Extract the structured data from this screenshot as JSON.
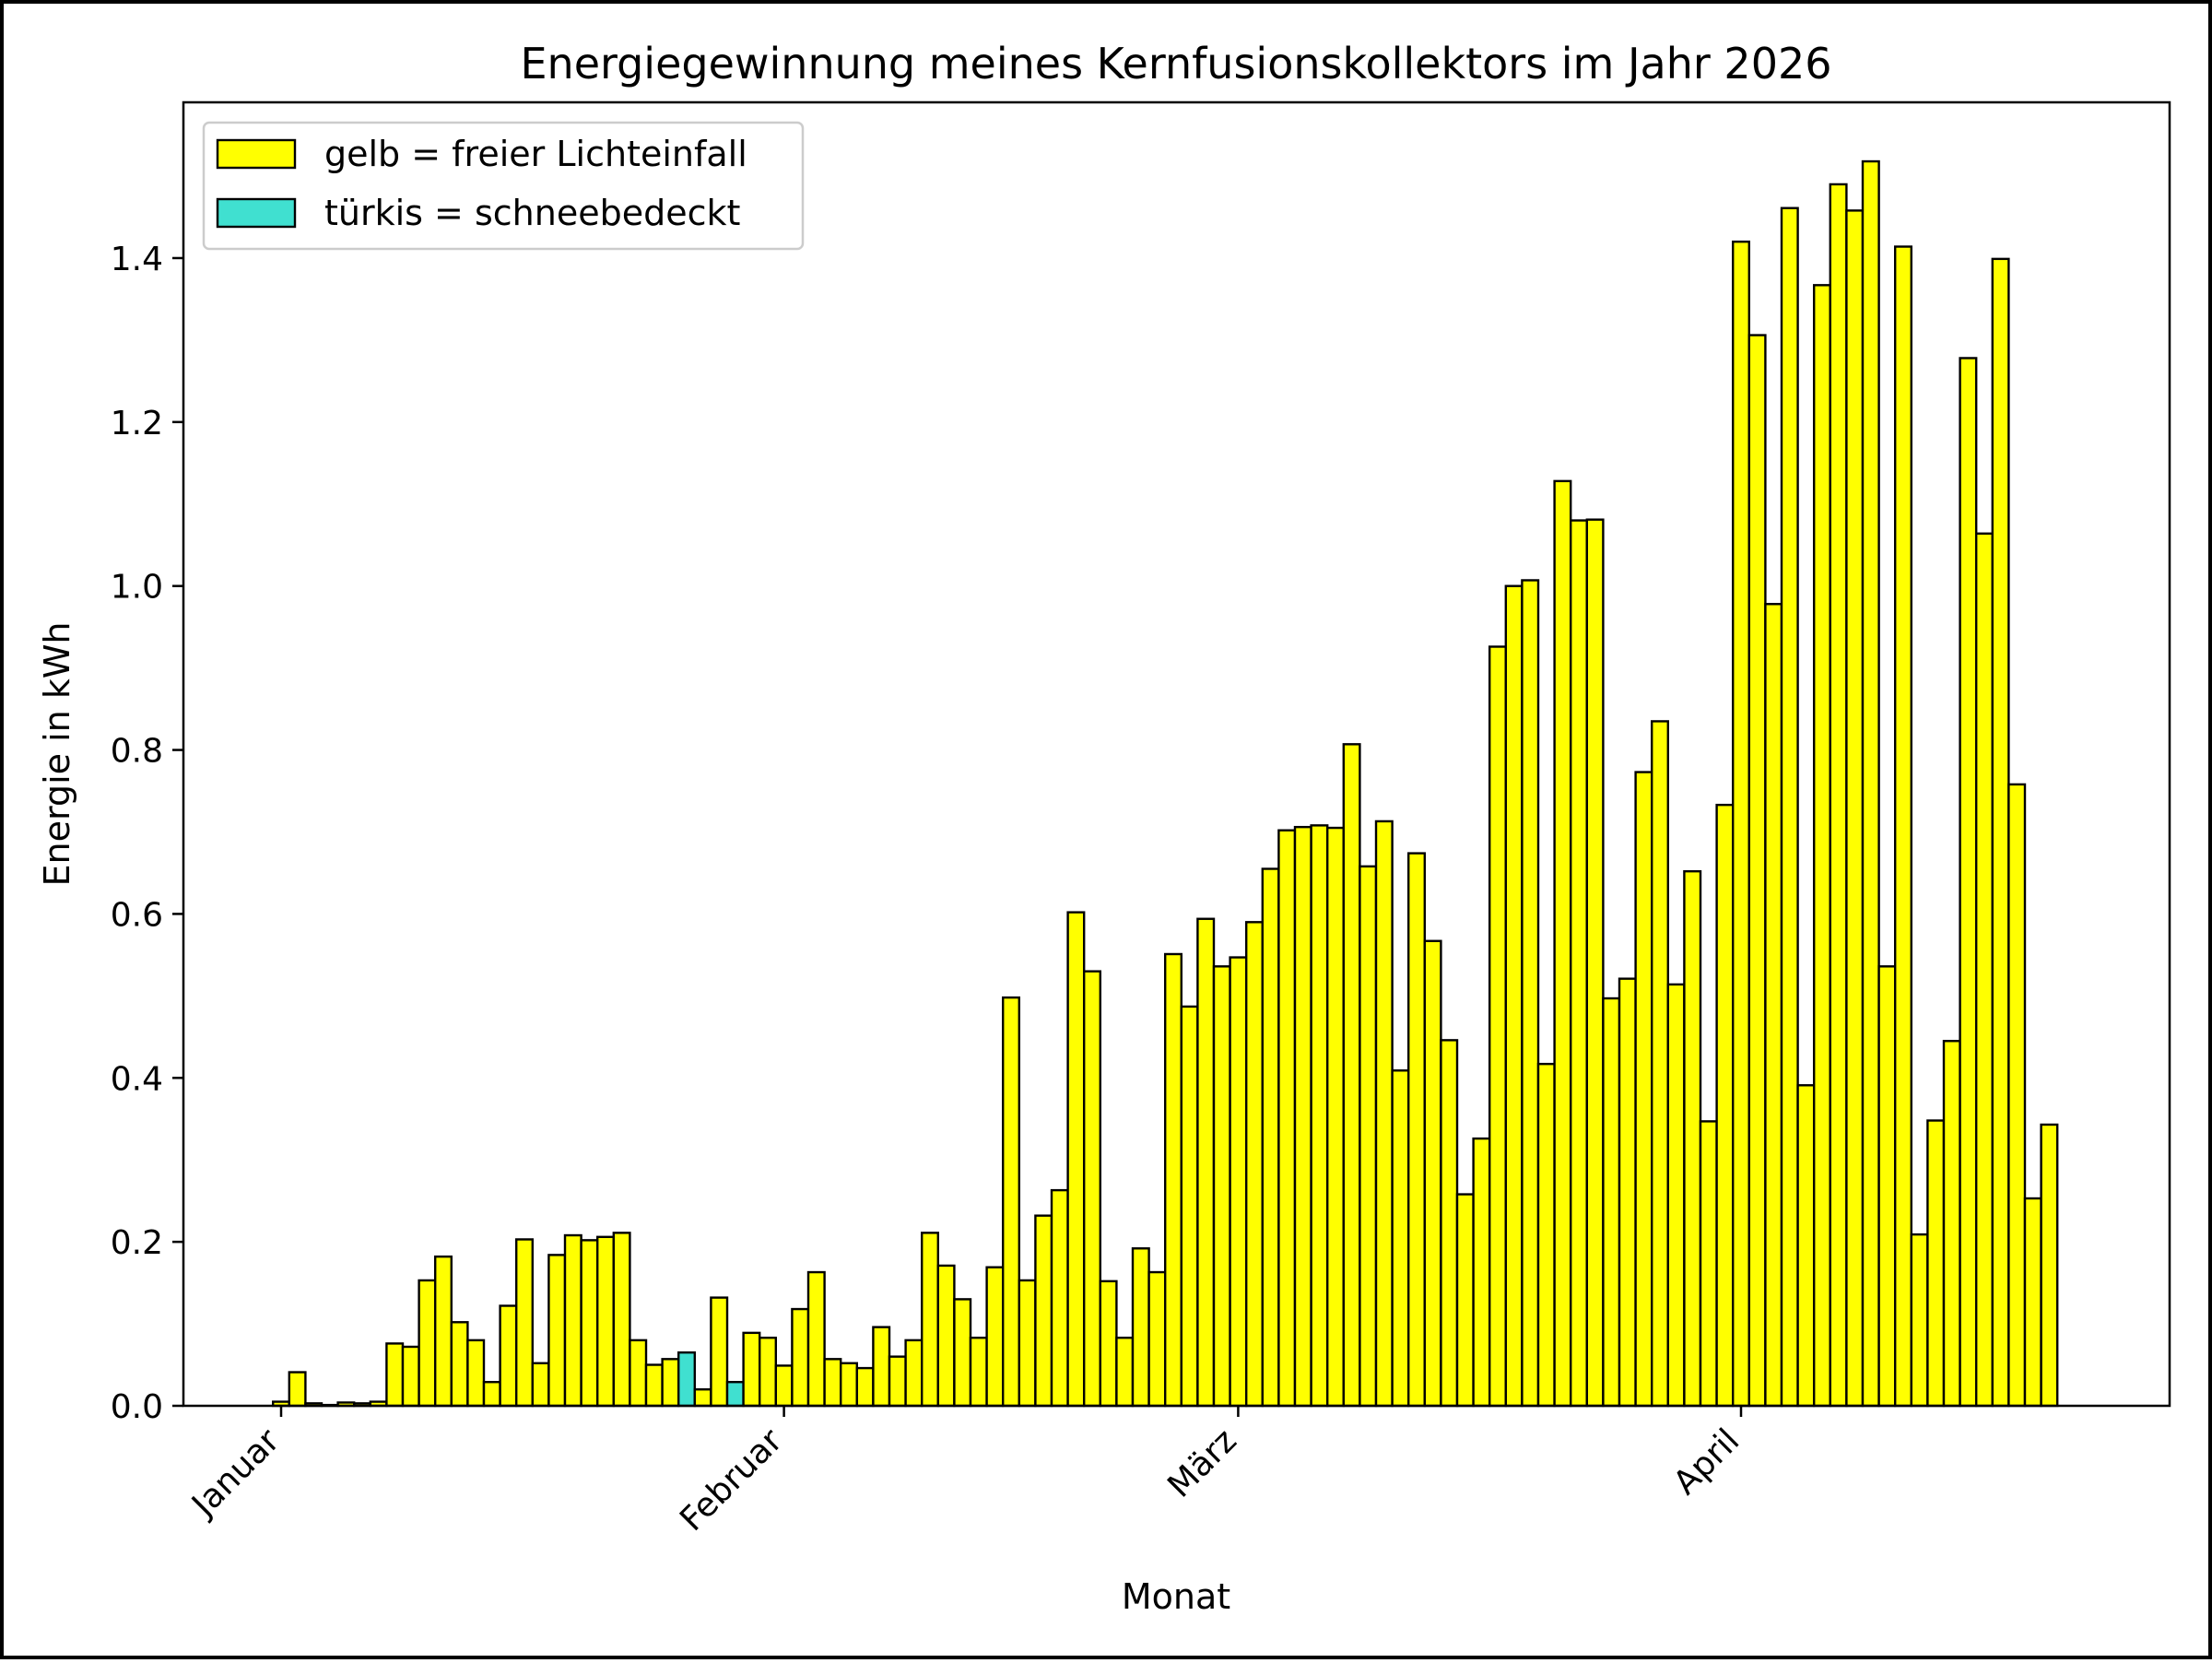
{
  "chart_data": {
    "type": "bar",
    "title": "Energiegewinnung meines Kernfusionskollektors im Jahr 2026",
    "xlabel": "Monat",
    "ylabel": "Energie in kWh",
    "ylim": [
      0,
      1.59
    ],
    "y_ticks": [
      "0.0",
      "0.2",
      "0.4",
      "0.6",
      "0.8",
      "1.0",
      "1.2",
      "1.4"
    ],
    "x_ticks": [
      {
        "label": "Januar",
        "day": 1
      },
      {
        "label": "Februar",
        "day": 32
      },
      {
        "label": "März",
        "day": 60
      },
      {
        "label": "April",
        "day": 91
      }
    ],
    "first_day": 1,
    "grid": false,
    "legend_position": "top-left",
    "legend": [
      {
        "label": "gelb = freier Lichteinfall",
        "color": "#ffff00"
      },
      {
        "label": "türkis = schneebedeckt",
        "color": "#40e0d0"
      }
    ],
    "colors": {
      "free": "#ffff00",
      "snow": "#40e0d0",
      "edge": "#000000"
    },
    "snow_days": [
      26,
      29
    ],
    "values": [
      0.005,
      0.041,
      0.003,
      0.001,
      0.004,
      0.003,
      0.005,
      0.076,
      0.072,
      0.153,
      0.182,
      0.102,
      0.08,
      0.029,
      0.122,
      0.203,
      0.052,
      0.184,
      0.208,
      0.202,
      0.206,
      0.211,
      0.08,
      0.05,
      0.057,
      0.065,
      0.02,
      0.132,
      0.029,
      0.089,
      0.083,
      0.049,
      0.118,
      0.163,
      0.057,
      0.052,
      0.046,
      0.096,
      0.06,
      0.08,
      0.211,
      0.171,
      0.13,
      0.083,
      0.169,
      0.498,
      0.153,
      0.232,
      0.263,
      0.602,
      0.53,
      0.152,
      0.083,
      0.192,
      0.163,
      0.551,
      0.487,
      0.594,
      0.536,
      0.547,
      0.59,
      0.655,
      0.702,
      0.706,
      0.708,
      0.705,
      0.807,
      0.658,
      0.713,
      0.409,
      0.674,
      0.567,
      0.446,
      0.258,
      0.326,
      0.926,
      1.0,
      1.007,
      0.417,
      1.128,
      1.08,
      1.081,
      0.497,
      0.521,
      0.773,
      0.835,
      0.514,
      0.652,
      0.347,
      0.733,
      1.42,
      1.306,
      0.978,
      1.461,
      0.391,
      1.367,
      1.49,
      1.458,
      1.518,
      0.536,
      1.414,
      0.209,
      0.348,
      0.445,
      1.278,
      1.064,
      1.399,
      0.758,
      0.253,
      0.343
    ]
  }
}
